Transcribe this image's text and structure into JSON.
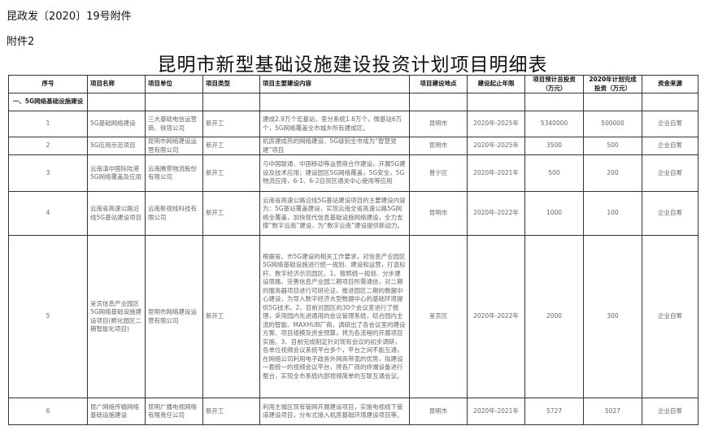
{
  "header": {
    "doc_ref": "昆政发〔2020〕19号附件",
    "attachment": "附件2",
    "title": "昆明市新型基础设施建设投资计划项目明细表"
  },
  "table": {
    "columns": [
      "序号",
      "项目名称",
      "项目单位",
      "项目类型",
      "项目主要建设内容",
      "项目建设地点",
      "建设起止年限",
      "项目预计总投资（万元）",
      "2020年计划完成投资（万元）",
      "资金来源"
    ],
    "section": "一、5G网络基础设施建设",
    "rows": [
      {
        "no": "1",
        "name": "5G基础网络建设",
        "unit": "三大基础电信运营商、铁塔公司",
        "type": "新开工",
        "content": "建成2.9万个宏基站，室分系统1.6万个，微基站6万个，5G网络覆盖全市城乡所有建成区。",
        "location": "昆明市",
        "period": "2020年-2025年",
        "total": "5340000",
        "plan2020": "500000",
        "fund": "企业自筹"
      },
      {
        "no": "2",
        "name": "5G应用示范项目",
        "unit": "昆明市网络建设运营有限公司",
        "type": "新开工",
        "content": "机房建成热的网络建设、5G级别全市成为“智慧党建”项目",
        "location": "昆明市",
        "period": "2020年-2025年",
        "total": "3500",
        "plan2020": "500",
        "fund": "企业自筹"
      },
      {
        "no": "3",
        "name": "云南滇中国际陆港5G网络覆盖及应用",
        "unit": "云南腾景物流股份有限公司",
        "type": "新开工",
        "content": "与中国联通、中国移动等运营商合作建设，开展5G建设及技术应用；建设园区5G网络覆盖，5G安全，5G物流应用，6-1、6-2自贸区通关中心使用等应用",
        "location": "晋宁区",
        "period": "2020年-2021年",
        "total": "500",
        "plan2020": "200",
        "fund": "企业自筹"
      },
      {
        "no": "4",
        "name": "云南省高速公路沿线5G基站建设项目",
        "unit": "云南新视线科技有限公司",
        "type": "新开工",
        "content": "云南省高速公路沿线5G基站建设项目的主要建设内容为：5G基站覆盖建设，实现云南全省高速公路5G网络全覆盖，加快现代信息基础设施网络建设，全力支撑“数字云南”建设，为“数字云南”建设提供新动力。",
        "location": "昆明市",
        "period": "2020年-2022年",
        "total": "1000",
        "plan2020": "100",
        "fund": "企业自筹"
      },
      {
        "no": "5",
        "name": "呈贡信息产业园区5G网络基础设施建设项目(孵化园区二期智能化项目)",
        "unit": "昆明市网络建设运营有限公司",
        "type": "新开工",
        "content": "根据省、市5G建设的相关工作要求，对信息产业园区5G网络基础设施进行统一规划、建设和运营，打造标杆、数字经济示范园区。1、按照统一规划、分步建设思路，完善信息产业园二期项目所需通信，对二期的服务器项目进行可研论证，推进园区二期的数据中心建设，为导入数字经济大型数据中心的基础环境提供5G技术。2、目前对园区的30个会议室进行了梳理，采用园内先进通用的会议管理系统，结合园内主流的智能、MAXHUB厂商，调研出了各会议室的建设方案、项目规模及资金预算，将为各流程的开展项目实施。3、目前完成制定针对现有会议的初步调研，各单位视频会议系统平台多个，平台之间不能互通，在网络公司利用电子政务外网高带宽的优势，拟建设一套统一的视频会议平台，将各厂商的终端设备进行整合，实现全市系统内部视频简单的互联互通会议。",
        "location": "呈贡区",
        "period": "2020年-2022年",
        "total": "2000",
        "plan2020": "300",
        "fund": "企业自筹"
      },
      {
        "no": "6",
        "name": "昆广网络传输网络基础设施建设",
        "unit": "昆明广播电视网络有限责任公司",
        "type": "新开工",
        "content": "利用主城区现有管网开展建设项目，实施电视线下管道建设项目，分布式接入机房基础环境建设项目等。",
        "location": "昆明市",
        "period": "2020年-2021年",
        "total": "5727",
        "plan2020": "5027",
        "fund": "企业自筹"
      }
    ]
  }
}
